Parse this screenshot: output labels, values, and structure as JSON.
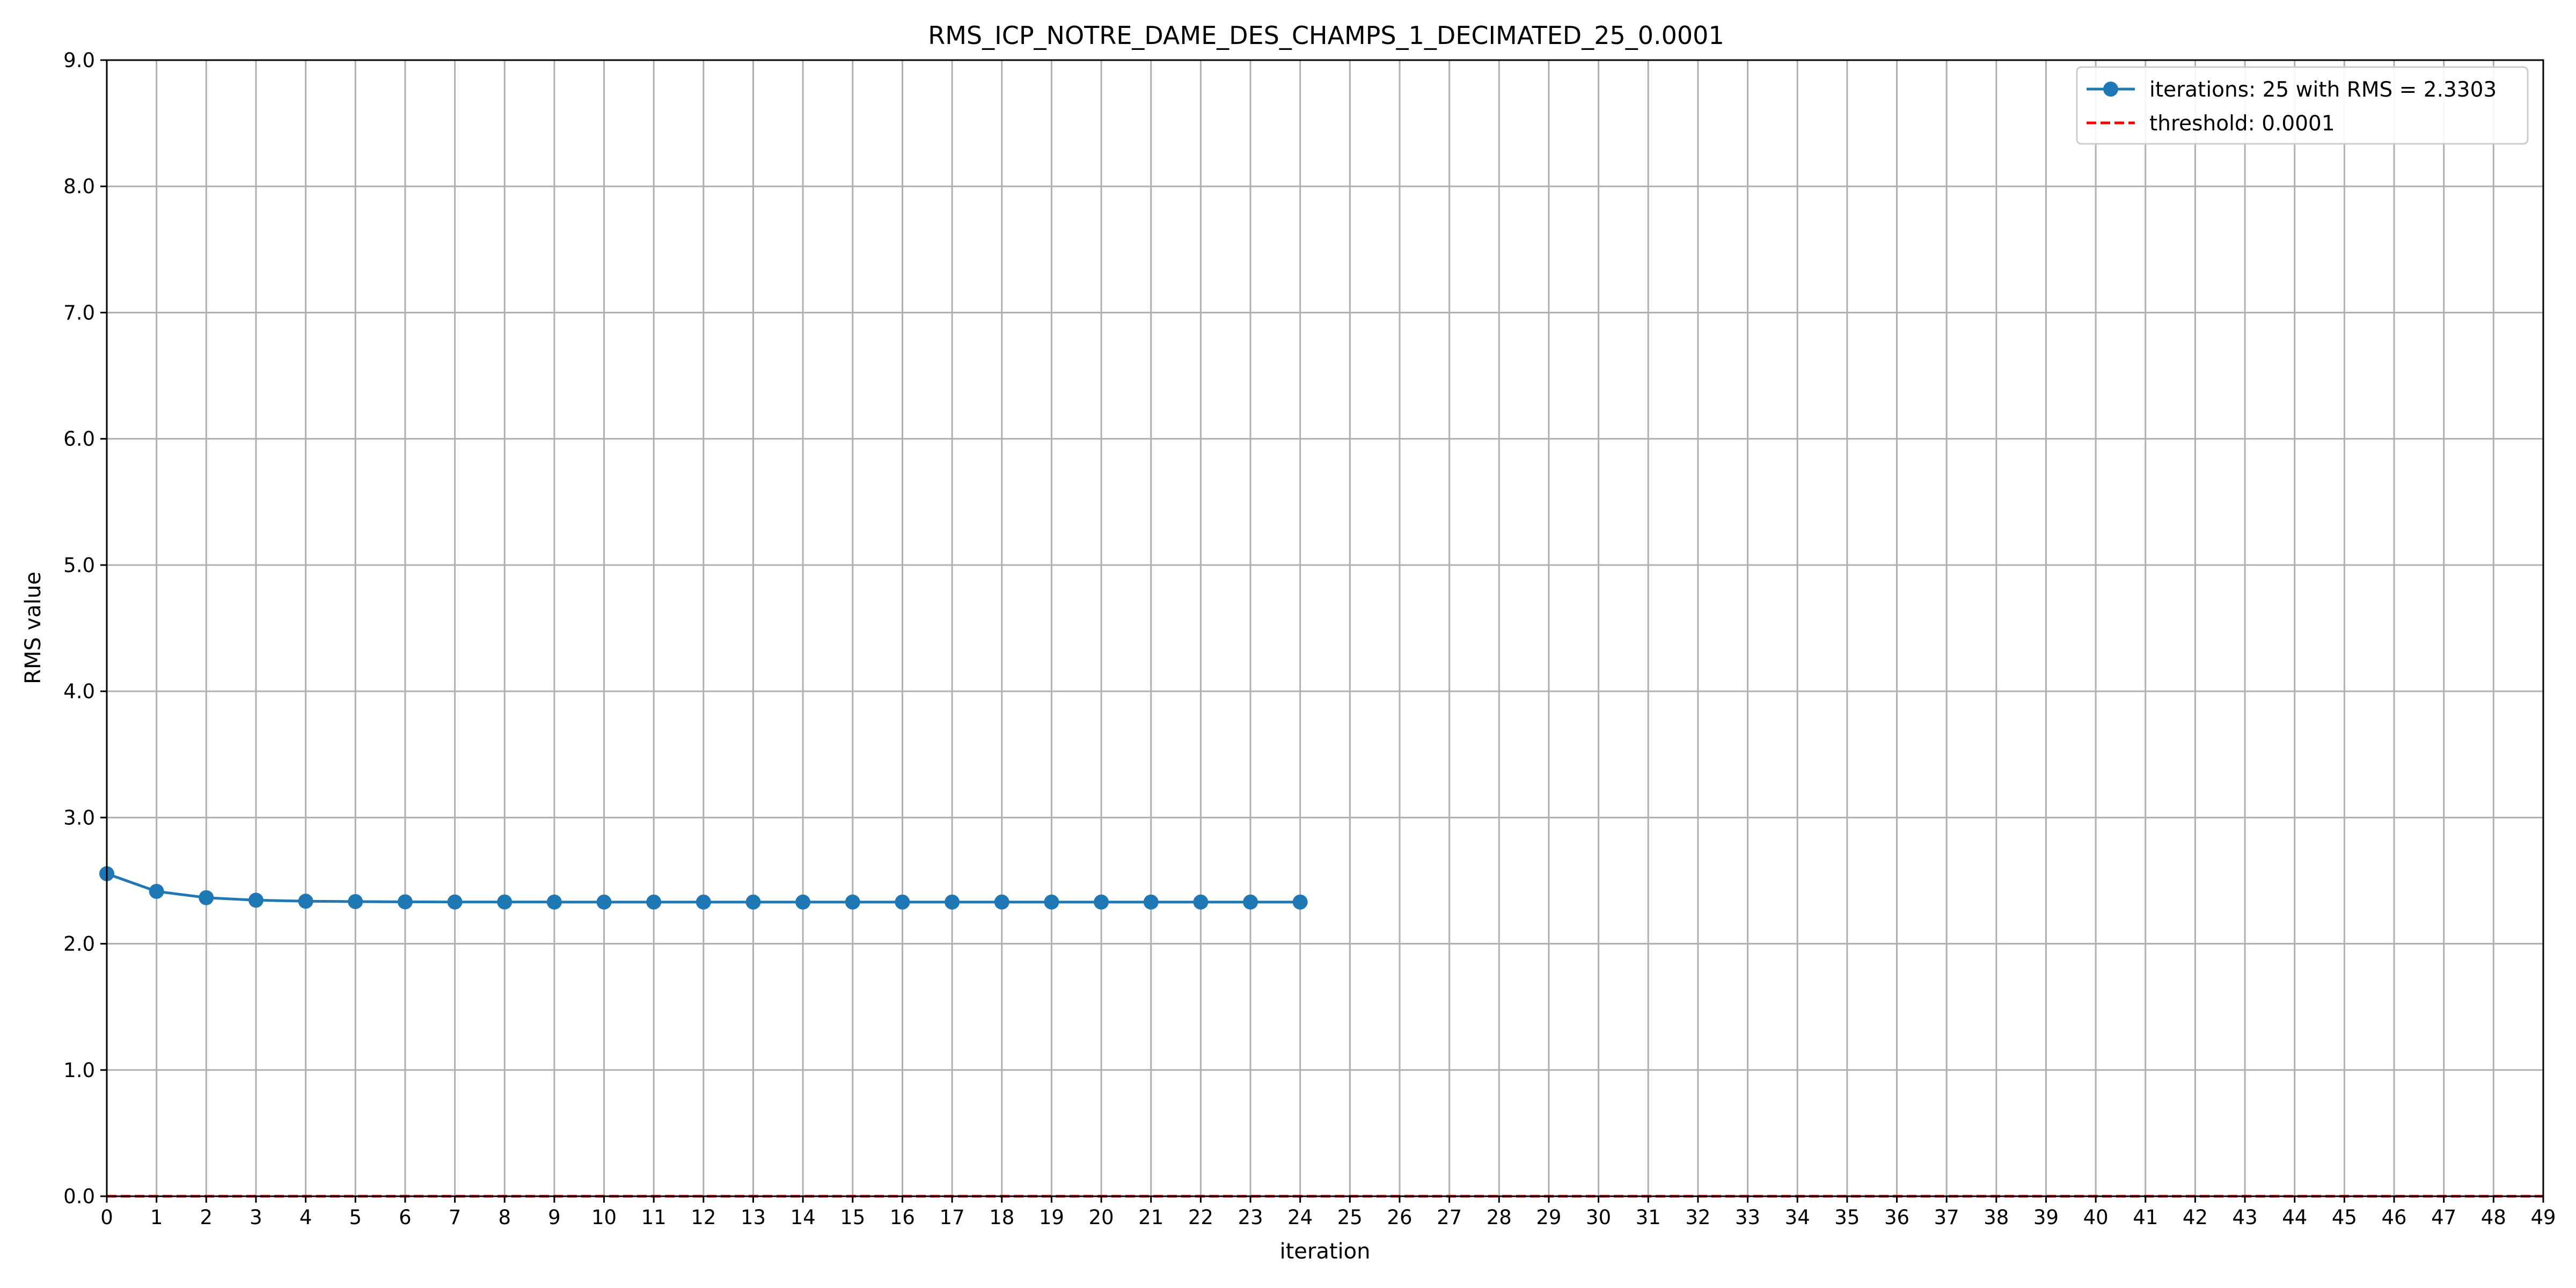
{
  "chart_data": {
    "type": "line",
    "title": "RMS_ICP_NOTRE_DAME_DES_CHAMPS_1_DECIMATED_25_0.0001",
    "xlabel": "iteration",
    "ylabel": "RMS value",
    "xlim": [
      0,
      49
    ],
    "ylim": [
      0,
      9
    ],
    "x_ticks": [
      0,
      1,
      2,
      3,
      4,
      5,
      6,
      7,
      8,
      9,
      10,
      11,
      12,
      13,
      14,
      15,
      16,
      17,
      18,
      19,
      20,
      21,
      22,
      23,
      24,
      25,
      26,
      27,
      28,
      29,
      30,
      31,
      32,
      33,
      34,
      35,
      36,
      37,
      38,
      39,
      40,
      41,
      42,
      43,
      44,
      45,
      46,
      47,
      48,
      49
    ],
    "y_ticks": [
      0.0,
      1.0,
      2.0,
      3.0,
      4.0,
      5.0,
      6.0,
      7.0,
      8.0,
      9.0
    ],
    "y_tick_labels": [
      "0.0",
      "1.0",
      "2.0",
      "3.0",
      "4.0",
      "5.0",
      "6.0",
      "7.0",
      "8.0",
      "9.0"
    ],
    "grid": true,
    "legend_position": "top-right",
    "series": [
      {
        "name": "iterations: 25 with RMS = 2.3303",
        "style": "line-with-markers",
        "color": "#1f77b4",
        "x": [
          0,
          1,
          2,
          3,
          4,
          5,
          6,
          7,
          8,
          9,
          10,
          11,
          12,
          13,
          14,
          15,
          16,
          17,
          18,
          19,
          20,
          21,
          22,
          23,
          24
        ],
        "values": [
          2.555,
          2.415,
          2.365,
          2.345,
          2.337,
          2.334,
          2.332,
          2.331,
          2.331,
          2.3305,
          2.3304,
          2.3304,
          2.3303,
          2.3303,
          2.3303,
          2.3303,
          2.3303,
          2.3303,
          2.3303,
          2.3303,
          2.3303,
          2.3303,
          2.3303,
          2.3303,
          2.3303
        ]
      },
      {
        "name": "threshold: 0.0001",
        "style": "dashed",
        "color": "#ff0000",
        "x": [
          0,
          49
        ],
        "values": [
          0.0001,
          0.0001
        ]
      }
    ]
  }
}
